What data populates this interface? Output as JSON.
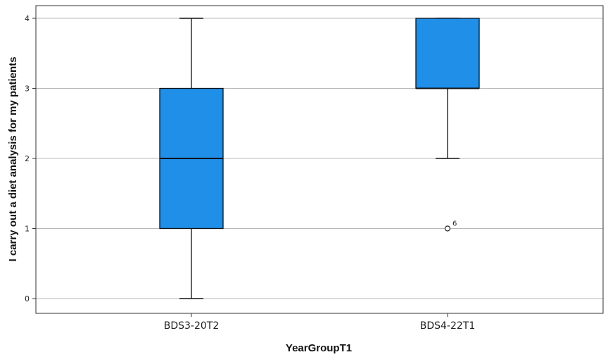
{
  "chart_data": {
    "type": "box",
    "xlabel": "YearGroupT1",
    "ylabel": "I carry out a diet analysis for my patients",
    "ylim": [
      0,
      4
    ],
    "yticks": [
      0,
      1,
      2,
      3,
      4
    ],
    "grid": true,
    "box_color": "#1f8fe8",
    "categories": [
      "BDS3-20T2",
      "BDS4-22T1"
    ],
    "boxes": [
      {
        "category": "BDS3-20T2",
        "min": 0,
        "q1": 1,
        "median": 2,
        "q3": 3,
        "max": 4,
        "outliers": []
      },
      {
        "category": "BDS4-22T1",
        "min": 2,
        "q1": 3,
        "median": 3,
        "q3": 4,
        "max": 4,
        "outliers": [
          {
            "value": 1,
            "label": "6"
          }
        ]
      }
    ]
  }
}
